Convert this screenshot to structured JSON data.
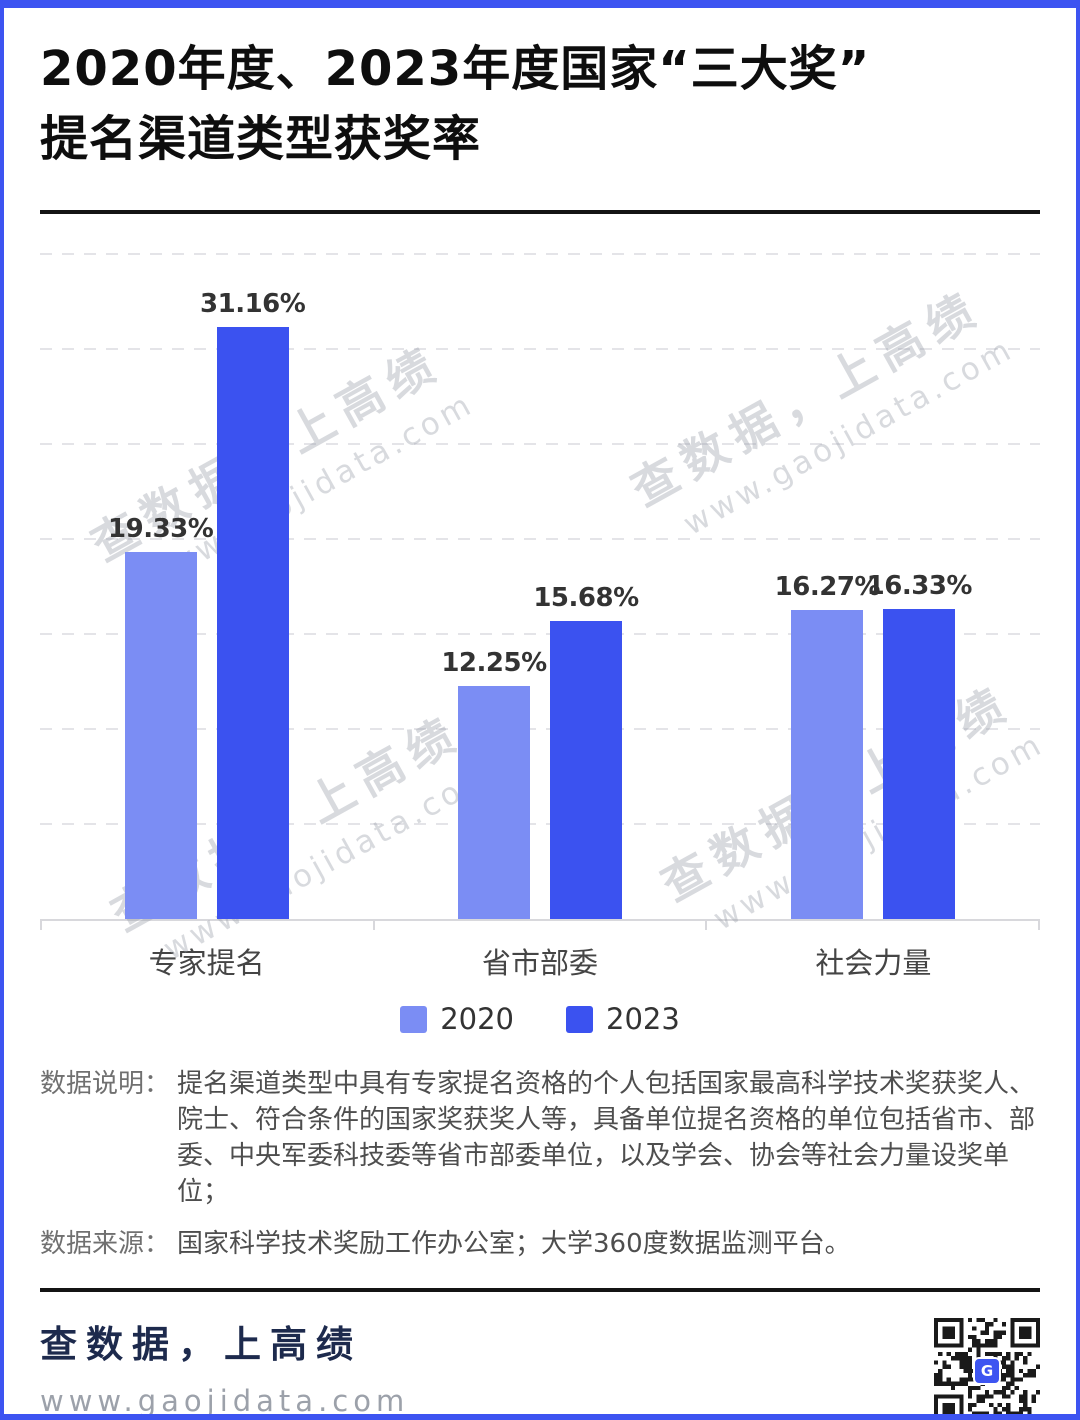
{
  "title": {
    "line1": "2020年度、2023年度国家“三大奖”",
    "line2": "提名渠道类型获奖率"
  },
  "chart_data": {
    "type": "bar",
    "title": "2020年度、2023年度国家“三大奖”提名渠道类型获奖率",
    "categories": [
      "专家提名",
      "省市部委",
      "社会力量"
    ],
    "series": [
      {
        "name": "2020",
        "color": "#7B8DF4",
        "values": [
          19.33,
          12.25,
          16.27
        ],
        "labels": [
          "19.33%",
          "12.25%",
          "16.27%"
        ]
      },
      {
        "name": "2023",
        "color": "#3B52F0",
        "values": [
          31.16,
          15.68,
          16.33
        ],
        "labels": [
          "31.16%",
          "15.68%",
          "16.33%"
        ]
      }
    ],
    "value_suffix": "%",
    "ylim": [
      0,
      35
    ],
    "grid_step": 5,
    "grid": "horizontal-dashed",
    "y_axis_labels_visible": false,
    "legend_position": "bottom-center"
  },
  "watermark": {
    "line1": "查数据，上高绩",
    "line2": "www.gaojidata.com"
  },
  "notes": {
    "explain_label": "数据说明：",
    "explain_text": "提名渠道类型中具有专家提名资格的个人包括国家最高科学技术奖获奖人、院士、符合条件的国家奖获奖人等，具备单位提名资格的单位包括省市、部委、中央军委科技委等省市部委单位，以及学会、协会等社会力量设奖单位；",
    "source_label": "数据来源：",
    "source_text": "国家科学技术奖励工作办公室；大学360度数据监测平台。"
  },
  "footer": {
    "slogan": "查数据，上高绩",
    "website": "www.gaojidata.com",
    "qr_center_logo": "G"
  },
  "colors": {
    "page_border": "#3D54F1",
    "bar_2020": "#7B8DF4",
    "bar_2023": "#3B52F0",
    "divider": "#141414",
    "slogan_text": "#1D2A4D",
    "website_text": "#9CA1AA"
  }
}
